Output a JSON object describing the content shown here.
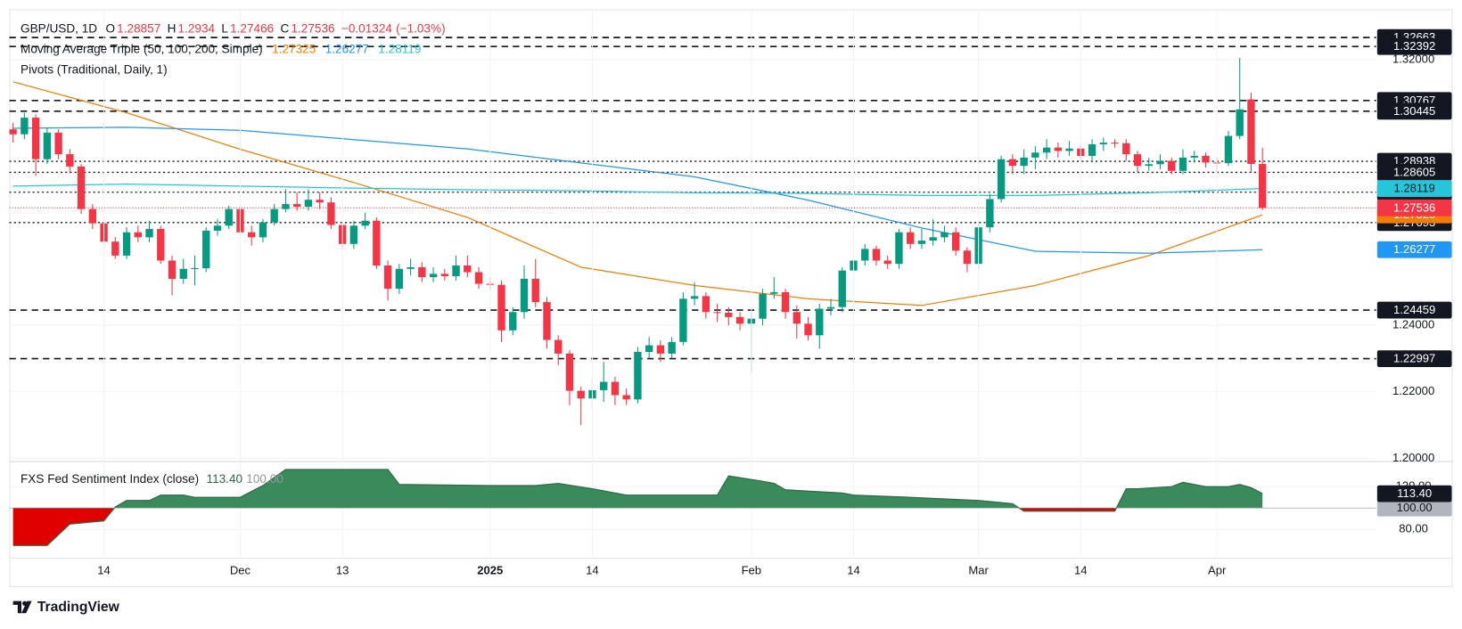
{
  "chart_data": [
    {
      "type": "candlestick",
      "legend": {
        "symbol": "GBP/USD, 1D",
        "ohlc_letters": [
          "O",
          "H",
          "L",
          "C"
        ],
        "change": {
          "value": -0.01324,
          "label": "−0.01324"
        },
        "change_pct": {
          "value": -1.03,
          "label": "(−1.03%)"
        },
        "ma_title": "Moving Average Triple (50, 100, 200, Simple)",
        "pivots_title": "Pivots (Traditional, Daily, 1)"
      },
      "categories": [
        null,
        null,
        null,
        null,
        null,
        null,
        null,
        null,
        "14",
        null,
        null,
        null,
        null,
        null,
        null,
        null,
        null,
        null,
        null,
        null,
        "Dec",
        null,
        null,
        null,
        null,
        null,
        null,
        null,
        null,
        "13",
        null,
        null,
        null,
        null,
        null,
        null,
        null,
        null,
        null,
        null,
        null,
        null,
        "2025",
        null,
        null,
        null,
        null,
        null,
        null,
        null,
        null,
        "14",
        null,
        null,
        null,
        null,
        null,
        null,
        null,
        null,
        null,
        null,
        null,
        null,
        null,
        "Feb",
        null,
        null,
        null,
        null,
        null,
        null,
        null,
        null,
        "14",
        null,
        null,
        null,
        null,
        null,
        null,
        null,
        null,
        null,
        null,
        "Mar",
        null,
        null,
        null,
        null,
        null,
        null,
        null,
        null,
        "14",
        null,
        null,
        null,
        null,
        null,
        null,
        null,
        null,
        null,
        null,
        null,
        "Apr",
        null,
        null,
        null,
        null
      ],
      "open": [
        1.299,
        1.2975,
        1.3025,
        1.29,
        1.298,
        1.2915,
        1.2878,
        1.275,
        1.2707,
        1.2652,
        1.261,
        1.268,
        1.2665,
        1.269,
        1.2595,
        1.254,
        1.257,
        1.2572,
        1.2685,
        1.27,
        1.275,
        1.268,
        1.2665,
        1.271,
        1.275,
        1.2765,
        1.2757,
        1.2778,
        1.277,
        1.2702,
        1.2645,
        1.27,
        1.2715,
        1.258,
        1.251,
        1.257,
        1.2575,
        1.2545,
        1.2555,
        1.2548,
        1.258,
        1.256,
        1.2525,
        1.2522,
        1.2385,
        1.244,
        1.254,
        1.247,
        1.2356,
        1.2315,
        1.2203,
        1.218,
        1.2205,
        1.223,
        1.219,
        1.2177,
        1.232,
        1.234,
        1.2315,
        1.235,
        1.248,
        1.2488,
        1.244,
        1.2438,
        1.2425,
        1.2405,
        1.242,
        1.2495,
        1.25,
        1.244,
        1.2405,
        1.237,
        1.245,
        1.2455,
        1.2565,
        1.2595,
        1.263,
        1.2595,
        1.2585,
        1.268,
        1.2645,
        1.2655,
        1.2665,
        1.268,
        1.2625,
        1.2585,
        1.2695,
        1.278,
        1.29,
        1.288,
        1.2905,
        1.292,
        1.2935,
        1.2925,
        1.2932,
        1.291,
        1.2945,
        1.295,
        1.2948,
        1.2915,
        1.288,
        1.2885,
        1.2895,
        1.2865,
        1.2905,
        1.291,
        1.289,
        1.2888,
        1.297,
        1.308,
        1.28857
      ],
      "high": [
        1.301,
        1.304,
        1.3035,
        1.2995,
        1.299,
        1.293,
        1.2885,
        1.2765,
        1.272,
        1.2665,
        1.2695,
        1.27,
        1.2715,
        1.27,
        1.261,
        1.26,
        1.261,
        1.2695,
        1.272,
        1.276,
        1.276,
        1.27,
        1.272,
        1.2765,
        1.281,
        1.28,
        1.281,
        1.28,
        1.2785,
        1.2715,
        1.2715,
        1.274,
        1.2725,
        1.2595,
        1.2585,
        1.26,
        1.259,
        1.2575,
        1.257,
        1.261,
        1.261,
        1.2575,
        1.2545,
        1.2535,
        1.2455,
        1.258,
        1.26,
        1.2485,
        1.237,
        1.2325,
        1.2215,
        1.224,
        1.229,
        1.2245,
        1.221,
        1.2335,
        1.2365,
        1.2355,
        1.2365,
        1.25,
        1.253,
        1.25,
        1.2465,
        1.2455,
        1.244,
        1.245,
        1.251,
        1.2545,
        1.251,
        1.246,
        1.2425,
        1.2465,
        1.248,
        1.2575,
        1.261,
        1.2645,
        1.264,
        1.261,
        1.269,
        1.2695,
        1.269,
        1.272,
        1.27,
        1.2695,
        1.2635,
        1.2715,
        1.2795,
        1.291,
        1.2915,
        1.293,
        1.294,
        1.296,
        1.295,
        1.2955,
        1.2945,
        1.296,
        1.2965,
        1.296,
        1.296,
        1.2925,
        1.2905,
        1.2915,
        1.2905,
        1.293,
        1.2925,
        1.292,
        1.2905,
        1.2985,
        1.3205,
        1.31,
        1.2934
      ],
      "low": [
        1.295,
        1.296,
        1.285,
        1.2885,
        1.29,
        1.286,
        1.2735,
        1.269,
        1.2635,
        1.26,
        1.26,
        1.265,
        1.265,
        1.2585,
        1.249,
        1.2525,
        1.252,
        1.256,
        1.267,
        1.269,
        1.266,
        1.264,
        1.265,
        1.27,
        1.274,
        1.2745,
        1.2745,
        1.275,
        1.269,
        1.263,
        1.263,
        1.269,
        1.257,
        1.2475,
        1.2495,
        1.255,
        1.253,
        1.253,
        1.2535,
        1.2535,
        1.2545,
        1.251,
        1.2505,
        1.235,
        1.237,
        1.242,
        1.2455,
        1.233,
        1.228,
        1.216,
        1.21,
        1.215,
        1.217,
        1.216,
        1.216,
        1.2165,
        1.23,
        1.229,
        1.23,
        1.234,
        1.246,
        1.242,
        1.241,
        1.24,
        1.2385,
        1.226,
        1.24,
        1.248,
        1.242,
        1.236,
        1.2355,
        1.233,
        1.243,
        1.244,
        1.255,
        1.258,
        1.258,
        1.257,
        1.257,
        1.263,
        1.263,
        1.264,
        1.265,
        1.261,
        1.256,
        1.257,
        1.268,
        1.277,
        1.2855,
        1.2855,
        1.287,
        1.29,
        1.2905,
        1.291,
        1.2895,
        1.289,
        1.2925,
        1.2935,
        1.2895,
        1.286,
        1.2865,
        1.287,
        1.2855,
        1.2855,
        1.289,
        1.2875,
        1.286,
        1.288,
        1.296,
        1.286,
        1.27466
      ],
      "close": [
        1.2975,
        1.3025,
        1.29,
        1.298,
        1.2915,
        1.2878,
        1.275,
        1.2707,
        1.2652,
        1.261,
        1.268,
        1.2665,
        1.269,
        1.2595,
        1.254,
        1.257,
        1.2572,
        1.2685,
        1.27,
        1.275,
        1.268,
        1.2665,
        1.271,
        1.275,
        1.2765,
        1.2757,
        1.2778,
        1.277,
        1.2702,
        1.2645,
        1.27,
        1.2715,
        1.258,
        1.251,
        1.257,
        1.2575,
        1.2545,
        1.2555,
        1.2548,
        1.258,
        1.256,
        1.2525,
        1.2522,
        1.2385,
        1.244,
        1.254,
        1.247,
        1.2356,
        1.2315,
        1.2203,
        1.218,
        1.2205,
        1.223,
        1.219,
        1.2177,
        1.232,
        1.234,
        1.2315,
        1.235,
        1.248,
        1.2488,
        1.244,
        1.2438,
        1.2425,
        1.2405,
        1.242,
        1.2495,
        1.25,
        1.244,
        1.2405,
        1.237,
        1.245,
        1.2455,
        1.2565,
        1.2595,
        1.263,
        1.2595,
        1.2585,
        1.268,
        1.2645,
        1.2655,
        1.2665,
        1.268,
        1.2625,
        1.2585,
        1.2695,
        1.278,
        1.29,
        1.288,
        1.2905,
        1.292,
        1.2935,
        1.2925,
        1.2932,
        1.291,
        1.2945,
        1.295,
        1.2948,
        1.2915,
        1.288,
        1.2885,
        1.2895,
        1.2865,
        1.2905,
        1.291,
        1.289,
        1.2888,
        1.297,
        1.305,
        1.28857,
        1.27536
      ],
      "up_color": "#089981",
      "down_color": "#f23645",
      "series": [
        {
          "color": "#f57c00",
          "tag_text_color": "#ffffff",
          "x": [
            0,
            10,
            20,
            30,
            40,
            50,
            60,
            70,
            80,
            90,
            100,
            110
          ],
          "values": [
            1.3133,
            1.304,
            1.293,
            1.283,
            1.2725,
            1.2575,
            1.252,
            1.248,
            1.246,
            1.252,
            1.261,
            1.27325
          ]
        },
        {
          "color": "#2196f3",
          "tag_text_color": "#ffffff",
          "x": [
            0,
            10,
            20,
            30,
            40,
            50,
            60,
            70,
            80,
            90,
            100,
            110
          ],
          "values": [
            1.2993,
            1.2996,
            1.2987,
            1.2959,
            1.2931,
            1.2889,
            1.2847,
            1.2777,
            1.2693,
            1.2623,
            1.2617,
            1.26277
          ]
        },
        {
          "color": "#26c6da",
          "tag_text_color": "#131722",
          "x": [
            0,
            10,
            20,
            30,
            40,
            50,
            60,
            70,
            80,
            90,
            100,
            110
          ],
          "values": [
            1.2819,
            1.2825,
            1.2819,
            1.2813,
            1.2808,
            1.2805,
            1.2799,
            1.2797,
            1.2791,
            1.2791,
            1.2799,
            1.28119
          ]
        }
      ],
      "pivots": [
        {
          "value": 1.32663,
          "style": "dashed"
        },
        {
          "value": 1.32392,
          "style": "dashed"
        },
        {
          "value": 1.30767,
          "style": "dashed"
        },
        {
          "value": 1.30445,
          "style": "dashed"
        },
        {
          "value": 1.28938,
          "style": "dotted"
        },
        {
          "value": 1.28605,
          "style": "dotted"
        },
        {
          "value": 1.28007,
          "style": "dotted"
        },
        {
          "value": 1.27093,
          "style": "dotted"
        },
        {
          "value": 1.24459,
          "style": "dashed"
        },
        {
          "value": 1.22997,
          "style": "dashed"
        }
      ],
      "ylim": [
        1.1993,
        1.334
      ],
      "yticks": [
        {
          "value": 1.32,
          "label": "1.32000"
        },
        {
          "value": 1.24,
          "label": "1.24000"
        },
        {
          "value": 1.22,
          "label": "1.22000"
        },
        {
          "value": 1.2,
          "label": "1.20000"
        }
      ],
      "grid": true
    },
    {
      "type": "area",
      "title": "FXS Fed Sentiment Index (close)",
      "x": [
        0,
        3,
        5,
        8,
        9,
        10,
        12,
        13,
        15,
        16,
        20,
        22,
        24,
        33,
        34,
        42,
        46,
        48,
        51,
        54,
        62,
        63,
        66,
        67,
        68,
        73,
        74,
        79,
        85,
        88,
        89,
        97,
        98,
        99,
        102,
        103,
        105,
        107,
        108,
        109,
        110
      ],
      "values": [
        65,
        65,
        85,
        88,
        101,
        107,
        107,
        112,
        112,
        110,
        110,
        121,
        136,
        136,
        122,
        121,
        121,
        123,
        118,
        112,
        112,
        130,
        125,
        123,
        117,
        114,
        112,
        110,
        107,
        104,
        97,
        97,
        118,
        118,
        120,
        124,
        120,
        120,
        122,
        119,
        113.4
      ],
      "value_labels": [
        null,
        null,
        null,
        null,
        null,
        null,
        null,
        null,
        null,
        null,
        null,
        null,
        null,
        null,
        null,
        null,
        null,
        null,
        null,
        null,
        null,
        null,
        null,
        null,
        null,
        null,
        null,
        null,
        null,
        null,
        null,
        null,
        null,
        null,
        null,
        null,
        null,
        null,
        null,
        null,
        "113.40"
      ],
      "baseline": {
        "value": 100,
        "label": "100.00"
      },
      "up_color": "#3a8a5c",
      "down_color": "#e00000",
      "line_color": "#2e6b47",
      "ylim": [
        53,
        142.6
      ],
      "yticks": [
        {
          "value": 80,
          "label": "80.00"
        },
        {
          "value": 120,
          "label": "120.00"
        }
      ],
      "grid": true
    }
  ],
  "footer": {
    "brand": "TradingView"
  }
}
